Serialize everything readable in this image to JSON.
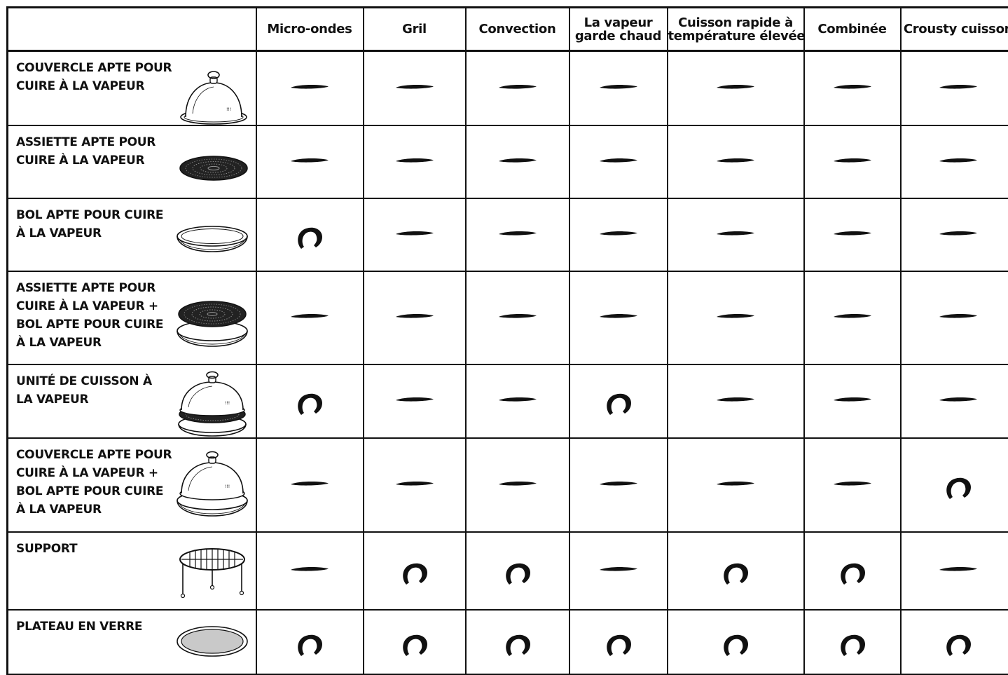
{
  "columns": [
    {
      "lines": [
        "Micro-ondes"
      ]
    },
    {
      "lines": [
        "Gril"
      ]
    },
    {
      "lines": [
        "Convection"
      ]
    },
    {
      "lines": [
        "La vapeur",
        "garde chaud"
      ]
    },
    {
      "lines": [
        "Cuisson rapide à",
        "température élevée"
      ]
    },
    {
      "lines": [
        "Combinée"
      ]
    },
    {
      "lines": [
        "Crousty cuisson"
      ]
    }
  ],
  "legend_marks": {
    "dash": "not-suitable-dash-icon",
    "circle": "suitable-circle-icon"
  },
  "rows": [
    {
      "lines": [
        "COUVERCLE APTE POUR",
        "CUIRE À LA VAPEUR"
      ],
      "icon": "steam-cover-icon",
      "marks": [
        "dash",
        "dash",
        "dash",
        "dash",
        "dash",
        "dash",
        "dash"
      ]
    },
    {
      "lines": [
        "ASSIETTE APTE POUR",
        "CUIRE À LA VAPEUR"
      ],
      "icon": "steam-plate-icon",
      "marks": [
        "dash",
        "dash",
        "dash",
        "dash",
        "dash",
        "dash",
        "dash"
      ]
    },
    {
      "lines": [
        "BOL APTE POUR CUIRE",
        "À LA VAPEUR"
      ],
      "icon": "steam-bowl-icon",
      "marks": [
        "circle",
        "dash",
        "dash",
        "dash",
        "dash",
        "dash",
        "dash"
      ]
    },
    {
      "lines": [
        "ASSIETTE APTE POUR",
        "CUIRE À LA VAPEUR +",
        "BOL APTE POUR CUIRE",
        "À LA VAPEUR"
      ],
      "icon": "plate-on-bowl-icon",
      "marks": [
        "dash",
        "dash",
        "dash",
        "dash",
        "dash",
        "dash",
        "dash"
      ]
    },
    {
      "lines": [
        "UNITÉ DE CUISSON À",
        "LA VAPEUR"
      ],
      "icon": "steam-cooking-unit-icon",
      "marks": [
        "circle",
        "dash",
        "dash",
        "circle",
        "dash",
        "dash",
        "dash"
      ]
    },
    {
      "lines": [
        "COUVERCLE APTE POUR",
        "CUIRE À LA VAPEUR +",
        "BOL APTE POUR CUIRE",
        "À LA VAPEUR"
      ],
      "icon": "cover-on-bowl-icon",
      "marks": [
        "dash",
        "dash",
        "dash",
        "dash",
        "dash",
        "dash",
        "circle"
      ]
    },
    {
      "lines": [
        "SUPPORT"
      ],
      "icon": "rack-icon",
      "marks": [
        "dash",
        "circle",
        "circle",
        "dash",
        "circle",
        "circle",
        "dash"
      ]
    },
    {
      "lines": [
        "PLATEAU EN VERRE"
      ],
      "icon": "glass-tray-icon",
      "marks": [
        "circle",
        "circle",
        "circle",
        "circle",
        "circle",
        "circle",
        "circle"
      ]
    }
  ]
}
